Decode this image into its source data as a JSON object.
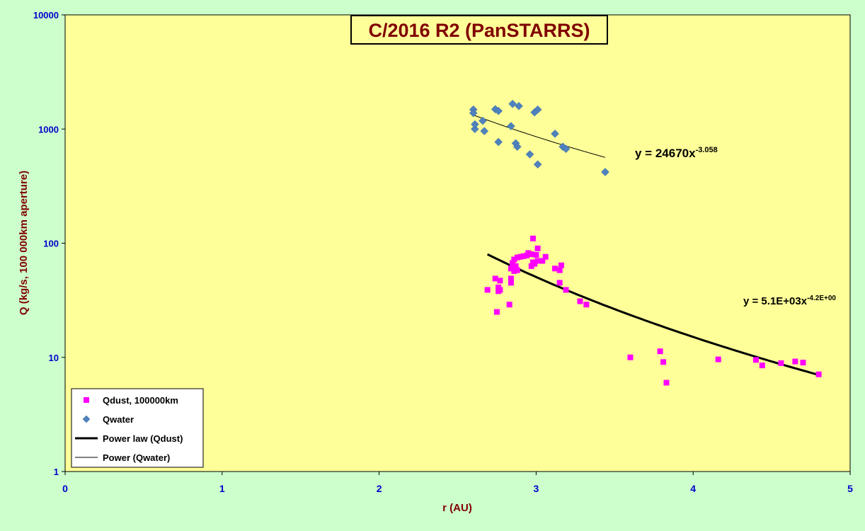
{
  "chart_data": {
    "type": "scatter",
    "title": "C/2016 R2 (PanSTARRS)",
    "xlabel": "r (AU)",
    "ylabel": "Q (kg/s, 100 000km aperture)",
    "xlim": [
      0,
      5
    ],
    "ylim": [
      1,
      10000
    ],
    "y_scale": "log",
    "x_ticks": [
      "0",
      "1",
      "2",
      "3",
      "4",
      "5"
    ],
    "y_ticks": [
      "1",
      "10",
      "100",
      "1000",
      "10000"
    ],
    "grid": false,
    "legend_position": "bottom-left",
    "colors": {
      "plot_background": "#ffff99",
      "page_background": "#ccffcc",
      "qdust": "#ff00ff",
      "qwater": "#4f81bd",
      "fit": "#000000",
      "title_text": "#800000",
      "tick_text": "#0000cc"
    },
    "series": [
      {
        "name": "Qdust, 100000km",
        "marker": "square",
        "points": [
          [
            2.69,
            39
          ],
          [
            2.74,
            49
          ],
          [
            2.75,
            25
          ],
          [
            2.76,
            38
          ],
          [
            2.76,
            41
          ],
          [
            2.77,
            47
          ],
          [
            2.77,
            39
          ],
          [
            2.83,
            29
          ],
          [
            2.84,
            45
          ],
          [
            2.84,
            49
          ],
          [
            2.84,
            60
          ],
          [
            2.85,
            67
          ],
          [
            2.86,
            57
          ],
          [
            2.86,
            72
          ],
          [
            2.87,
            63
          ],
          [
            2.88,
            58
          ],
          [
            2.88,
            75
          ],
          [
            2.9,
            76
          ],
          [
            2.92,
            77
          ],
          [
            2.94,
            78
          ],
          [
            2.95,
            82
          ],
          [
            2.97,
            63
          ],
          [
            2.97,
            80
          ],
          [
            2.98,
            110
          ],
          [
            2.98,
            68
          ],
          [
            2.99,
            66
          ],
          [
            3.0,
            79
          ],
          [
            3.01,
            70
          ],
          [
            3.01,
            90
          ],
          [
            3.04,
            70
          ],
          [
            3.06,
            76
          ],
          [
            3.12,
            60
          ],
          [
            3.15,
            58
          ],
          [
            3.15,
            45
          ],
          [
            3.16,
            64
          ],
          [
            3.19,
            39
          ],
          [
            3.28,
            31
          ],
          [
            3.32,
            29
          ],
          [
            3.6,
            10
          ],
          [
            3.79,
            11.3
          ],
          [
            3.81,
            9.1
          ],
          [
            3.83,
            6.0
          ],
          [
            4.16,
            9.6
          ],
          [
            4.4,
            9.5
          ],
          [
            4.44,
            8.5
          ],
          [
            4.56,
            8.9
          ],
          [
            4.65,
            9.2
          ],
          [
            4.7,
            9.0
          ],
          [
            4.8,
            7.1
          ]
        ]
      },
      {
        "name": "Qwater",
        "marker": "diamond",
        "points": [
          [
            2.6,
            1480
          ],
          [
            2.6,
            1380
          ],
          [
            2.61,
            1000
          ],
          [
            2.61,
            1100
          ],
          [
            2.66,
            1180
          ],
          [
            2.67,
            960
          ],
          [
            2.74,
            1490
          ],
          [
            2.76,
            1440
          ],
          [
            2.76,
            770
          ],
          [
            2.84,
            1060
          ],
          [
            2.85,
            1660
          ],
          [
            2.87,
            750
          ],
          [
            2.88,
            700
          ],
          [
            2.89,
            1590
          ],
          [
            2.96,
            600
          ],
          [
            2.99,
            1400
          ],
          [
            3.01,
            1480
          ],
          [
            3.01,
            490
          ],
          [
            3.12,
            910
          ],
          [
            3.17,
            700
          ],
          [
            3.19,
            670
          ],
          [
            3.44,
            420
          ]
        ]
      }
    ],
    "fits": [
      {
        "name": "Power law (Qdust)",
        "coefficient": 5100,
        "exponent": -4.2,
        "x_range": [
          2.69,
          4.8
        ],
        "equation_base": "y = 5.1E+03x",
        "equation_exponent": "-4.2E+00"
      },
      {
        "name": "Power (Qwater)",
        "coefficient": 24670,
        "exponent": -3.058,
        "x_range": [
          2.6,
          3.44
        ],
        "equation_base": "y = 24670x",
        "equation_exponent": "-3.058"
      }
    ]
  }
}
